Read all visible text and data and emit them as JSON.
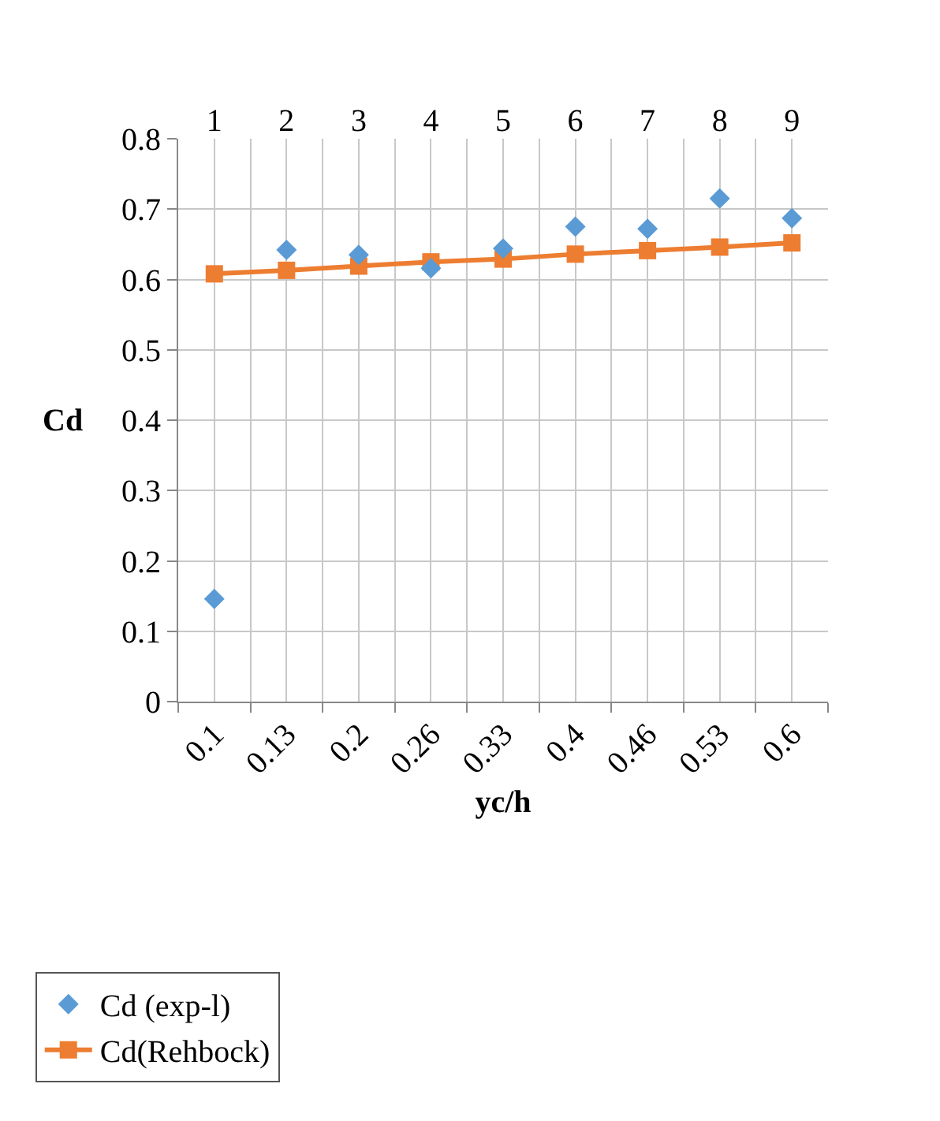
{
  "chart_data": {
    "type": "line",
    "xlabel": "yc/h",
    "ylabel": "Cd",
    "categories": [
      "0.1",
      "0.13",
      "0.2",
      "0.26",
      "0.33",
      "0.4",
      "0.46",
      "0.53",
      "0.6"
    ],
    "x2lim": [
      0.5,
      9.5
    ],
    "x2ticks": [
      1,
      2,
      3,
      4,
      5,
      6,
      7,
      8,
      9
    ],
    "ylim": [
      0,
      0.8
    ],
    "yticks": [
      0,
      0.1,
      0.2,
      0.3,
      0.4,
      0.5,
      0.6,
      0.7,
      0.8
    ],
    "grid": true,
    "legend": "bottom left",
    "series": [
      {
        "name": "Cd (exp-l)",
        "type": "scatter",
        "marker": "diamond",
        "color": "#5b9bd5",
        "values": [
          0.146,
          0.642,
          0.635,
          0.616,
          0.644,
          0.675,
          0.672,
          0.715,
          0.687
        ]
      },
      {
        "name": "Cd(Rehbock)",
        "marker": "square",
        "line_style": "solid",
        "color": "#ed7d31",
        "values": [
          0.608,
          0.613,
          0.619,
          0.625,
          0.629,
          0.636,
          0.641,
          0.646,
          0.652
        ]
      }
    ]
  }
}
